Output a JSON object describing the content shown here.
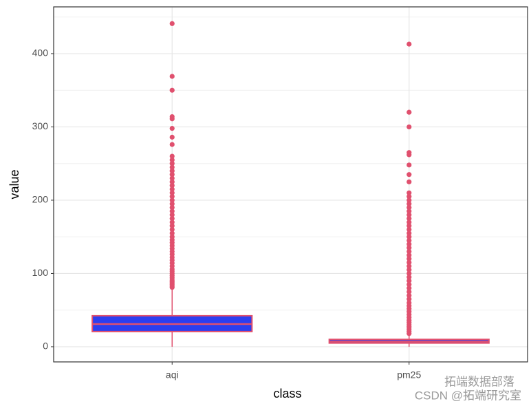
{
  "chart_data": {
    "type": "boxplot",
    "x_label": "class",
    "y_label": "value",
    "categories": [
      "aqi",
      "pm25"
    ],
    "fill": "#2b3ef0",
    "color": "#e0506e",
    "boxes": [
      {
        "min": 0,
        "q1": 20.7,
        "median": 31,
        "q3": 42.3,
        "max": 80,
        "outliers": [
          81,
          83,
          85,
          87,
          89,
          91,
          94,
          97,
          100,
          103,
          106,
          110,
          114,
          118,
          122,
          126,
          130,
          134,
          138,
          142,
          146,
          150,
          155,
          160,
          165,
          170,
          175,
          180,
          185,
          190,
          195,
          200,
          205,
          210,
          215,
          220,
          225,
          230,
          235,
          240,
          245,
          250,
          255,
          260,
          276,
          286,
          298,
          311,
          314,
          350,
          369,
          441
        ]
      },
      {
        "min": 0,
        "q1": 5,
        "median": 7,
        "q3": 10,
        "max": 17,
        "outliers": [
          18,
          21,
          24,
          27,
          30,
          33,
          36,
          40,
          44,
          48,
          52,
          56,
          60,
          65,
          70,
          75,
          80,
          85,
          90,
          95,
          100,
          105,
          110,
          115,
          120,
          125,
          130,
          135,
          140,
          145,
          150,
          155,
          160,
          165,
          170,
          175,
          180,
          185,
          190,
          195,
          200,
          205,
          210,
          225,
          235,
          248,
          262,
          265,
          300,
          320,
          413
        ]
      }
    ],
    "ylim": [
      -20.7,
      463.8
    ],
    "yticks": [
      0,
      100,
      200,
      300,
      400
    ],
    "minor_yticks": [
      50,
      150,
      250,
      350,
      450
    ],
    "grid": true,
    "watermark": [
      "拓端数据部落",
      "CSDN @拓端研究室"
    ]
  }
}
